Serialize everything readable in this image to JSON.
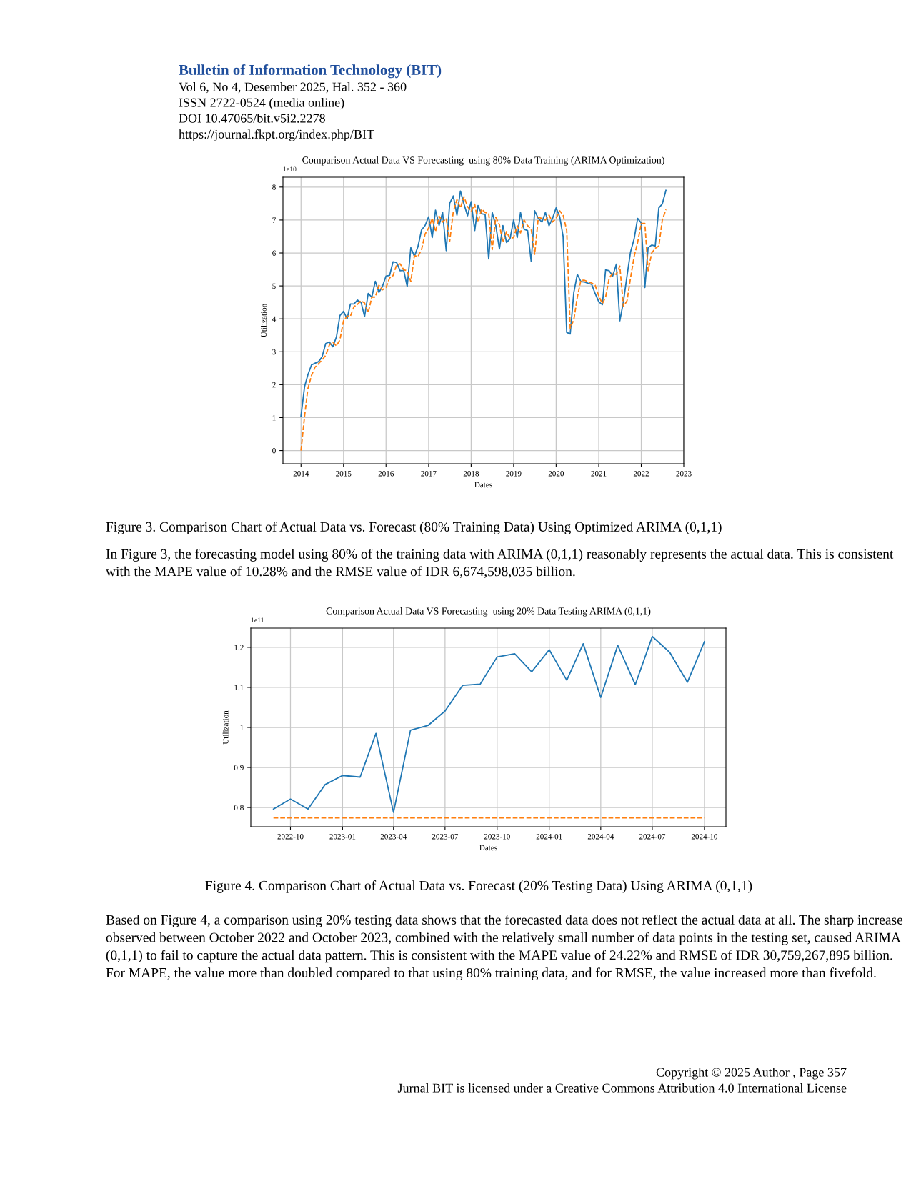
{
  "chart_data": [
    {
      "type": "line",
      "title": "Comparison Actual Data VS Forecasting  using 80% Data Training (ARIMA Optimization)",
      "xlabel": "Dates",
      "ylabel": "Utilization",
      "x": [
        "2014-01",
        "2014-02",
        "2014-03",
        "2014-04",
        "2014-05",
        "2014-06",
        "2014-07",
        "2014-08",
        "2014-09",
        "2014-10",
        "2014-11",
        "2014-12",
        "2015-01",
        "2015-02",
        "2015-03",
        "2015-04",
        "2015-05",
        "2015-06",
        "2015-07",
        "2015-08",
        "2015-09",
        "2015-10",
        "2015-11",
        "2015-12",
        "2016-01",
        "2016-02",
        "2016-03",
        "2016-04",
        "2016-05",
        "2016-06",
        "2016-07",
        "2016-08",
        "2016-09",
        "2016-10",
        "2016-11",
        "2016-12",
        "2017-01",
        "2017-02",
        "2017-03",
        "2017-04",
        "2017-05",
        "2017-06",
        "2017-07",
        "2017-08",
        "2017-09",
        "2017-10",
        "2017-11",
        "2017-12",
        "2018-01",
        "2018-02",
        "2018-03",
        "2018-04",
        "2018-05",
        "2018-06",
        "2018-07",
        "2018-08",
        "2018-09",
        "2018-10",
        "2018-11",
        "2018-12",
        "2019-01",
        "2019-02",
        "2019-03",
        "2019-04",
        "2019-05",
        "2019-06",
        "2019-07",
        "2019-08",
        "2019-09",
        "2019-10",
        "2019-11",
        "2019-12",
        "2020-01",
        "2020-02",
        "2020-03",
        "2020-04",
        "2020-05",
        "2020-06",
        "2020-07",
        "2020-08",
        "2020-09",
        "2020-10",
        "2020-11",
        "2020-12",
        "2021-01",
        "2021-02",
        "2021-03",
        "2021-04",
        "2021-05",
        "2021-06",
        "2021-07",
        "2021-08",
        "2021-09",
        "2021-10",
        "2021-11",
        "2021-12",
        "2022-01",
        "2022-02",
        "2022-03",
        "2022-04",
        "2022-05",
        "2022-06",
        "2022-07",
        "2022-08"
      ],
      "series": [
        {
          "color": "#1f77b4",
          "line_style": "solid",
          "values": [
            1.05,
            1.95,
            2.3,
            2.6,
            2.65,
            2.7,
            2.85,
            3.25,
            3.3,
            3.15,
            3.45,
            4.1,
            4.23,
            4.0,
            4.45,
            4.45,
            4.57,
            4.5,
            4.07,
            4.77,
            4.66,
            5.14,
            4.8,
            4.98,
            5.3,
            5.32,
            5.73,
            5.71,
            5.46,
            5.47,
            4.98,
            6.16,
            5.9,
            6.19,
            6.7,
            6.83,
            7.1,
            6.47,
            7.3,
            6.84,
            7.23,
            6.07,
            7.51,
            7.73,
            7.15,
            7.88,
            7.48,
            7.13,
            7.56,
            6.68,
            7.44,
            7.19,
            7.17,
            5.82,
            7.23,
            6.83,
            6.12,
            6.83,
            6.32,
            6.43,
            7.0,
            6.47,
            7.23,
            6.72,
            6.68,
            5.74,
            7.28,
            7.05,
            6.94,
            7.23,
            6.83,
            7.05,
            7.37,
            7.1,
            6.5,
            3.59,
            3.54,
            4.8,
            5.35,
            5.13,
            5.12,
            5.08,
            5.05,
            4.77,
            4.52,
            4.43,
            5.49,
            5.46,
            5.3,
            5.66,
            3.94,
            4.52,
            5.31,
            6.03,
            6.43,
            7.05,
            6.91,
            4.95,
            6.16,
            6.24,
            6.21,
            7.37,
            7.49,
            7.9
          ]
        },
        {
          "color": "#ff7f0e",
          "line_style": "dashed",
          "values": [
            0,
            1.05,
            1.88,
            2.28,
            2.53,
            2.64,
            2.75,
            2.89,
            3.2,
            3.29,
            3.18,
            3.36,
            3.94,
            4.08,
            4.08,
            4.37,
            4.44,
            4.55,
            4.48,
            4.19,
            4.66,
            4.66,
            5.02,
            4.88,
            4.95,
            5.24,
            5.31,
            5.64,
            5.67,
            5.49,
            5.46,
            5.13,
            5.92,
            5.89,
            6.1,
            6.57,
            6.76,
            7.05,
            6.65,
            7.12,
            6.94,
            7.05,
            6.36,
            7.26,
            7.62,
            7.37,
            7.71,
            7.41,
            7.26,
            7.48,
            6.94,
            7.33,
            7.23,
            7.2,
            6.1,
            7.08,
            6.86,
            6.32,
            6.65,
            6.43,
            6.47,
            6.83,
            6.61,
            7.0,
            6.83,
            6.72,
            5.96,
            7.08,
            7.05,
            7.0,
            7.15,
            6.94,
            7.05,
            7.28,
            7.15,
            6.68,
            3.72,
            3.97,
            4.66,
            5.17,
            5.17,
            5.13,
            5.09,
            5.02,
            4.7,
            4.46,
            4.66,
            5.24,
            5.38,
            5.35,
            5.6,
            4.37,
            4.55,
            5.24,
            5.89,
            6.32,
            6.9,
            6.9,
            5.46,
            6.0,
            6.14,
            6.21,
            7.0,
            7.32
          ]
        }
      ],
      "xlim": [
        "2013-07-30",
        "2023-01-01"
      ],
      "xticks": [
        "2014",
        "2015",
        "2016",
        "2017",
        "2018",
        "2019",
        "2020",
        "2021",
        "2022",
        "2023"
      ],
      "ylim": [
        -0.4,
        8.3
      ],
      "yticks": [
        0,
        1,
        2,
        3,
        4,
        5,
        6,
        7,
        8
      ],
      "grid": true,
      "annotations": [
        "1e10",
        "Bulletin of Information Technology (BIT)",
        "Vol 6, No 4, Desember 2025, Hal. 352 - 360",
        "ISSN 2722-0524 (media online)",
        "DOI 10.47065/bit.v5i2.2278",
        "https://journal.fkpt.org/index.php/BIT",
        "Figure 3. Comparison Chart of Actual Data vs. Forecast (80% Training Data) Using Optimized ARIMA (0,1,1)",
        "In Figure 3, the forecasting model using 80% of the training data with ARIMA (0,1,1) reasonably represents the actual data. This is consistent with the MAPE value of 10.28% and the RMSE value of IDR 6,674,598,035 billion."
      ]
    },
    {
      "type": "line",
      "title": "Comparison Actual Data VS Forecasting  using 20% Data Testing ARIMA (0,1,1)",
      "xlabel": "Dates",
      "ylabel": "Utilization",
      "x": [
        "2022-09",
        "2022-10",
        "2022-11",
        "2022-12",
        "2023-01",
        "2023-02",
        "2023-03",
        "2023-04",
        "2023-05",
        "2023-06",
        "2023-07",
        "2023-08",
        "2023-09",
        "2023-10",
        "2023-11",
        "2023-12",
        "2024-01",
        "2024-02",
        "2024-03",
        "2024-04",
        "2024-05",
        "2024-06",
        "2024-07",
        "2024-08",
        "2024-09",
        "2024-10"
      ],
      "series": [
        {
          "color": "#1f77b4",
          "line_style": "solid",
          "values": [
            0.796,
            0.821,
            0.796,
            0.857,
            0.88,
            0.876,
            0.985,
            0.788,
            0.993,
            1.005,
            1.041,
            1.105,
            1.108,
            1.176,
            1.184,
            1.139,
            1.194,
            1.118,
            1.209,
            1.075,
            1.205,
            1.107,
            1.227,
            1.187,
            1.113,
            1.214
          ]
        },
        {
          "color": "#ff7f0e",
          "line_style": "dashed",
          "values": [
            0.774,
            0.774,
            0.774,
            0.774,
            0.774,
            0.774,
            0.774,
            0.774,
            0.774,
            0.774,
            0.774,
            0.774,
            0.774,
            0.774,
            0.774,
            0.774,
            0.774,
            0.774,
            0.774,
            0.774,
            0.774,
            0.774,
            0.774,
            0.774,
            0.774,
            0.774
          ]
        }
      ],
      "xlim": [
        "2022-07-23",
        "2024-11-08"
      ],
      "xticks": [
        "2022-10",
        "2023-01",
        "2023-04",
        "2023-07",
        "2023-10",
        "2024-01",
        "2024-04",
        "2024-07",
        "2024-10"
      ],
      "ylim": [
        0.752,
        1.248
      ],
      "yticks": [
        0.8,
        0.9,
        1,
        1.1,
        1.2
      ],
      "grid": true,
      "annotations": [
        "1e11",
        "Figure 4. Comparison Chart of Actual Data vs. Forecast (20% Testing Data) Using ARIMA (0,1,1)",
        "Based on Figure 4, a comparison using 20% testing data shows that the forecasted data does not reflect the actual data at all. The sharp increase observed between October 2022 and October 2023, combined with the relatively small number of data points in the testing set, caused ARIMA (0,1,1) to fail to capture the actual data pattern. This is consistent with the MAPE value of 24.22% and RMSE of IDR 30,759,267,895 billion. For MAPE, the value more than doubled compared to that using 80% training data, and for RMSE, the value increased more than fivefold.",
        "Copyright © 2025 Author , Page 357",
        "Jurnal BIT is licensed under a Creative Commons Attribution 4.0 International License"
      ]
    }
  ]
}
